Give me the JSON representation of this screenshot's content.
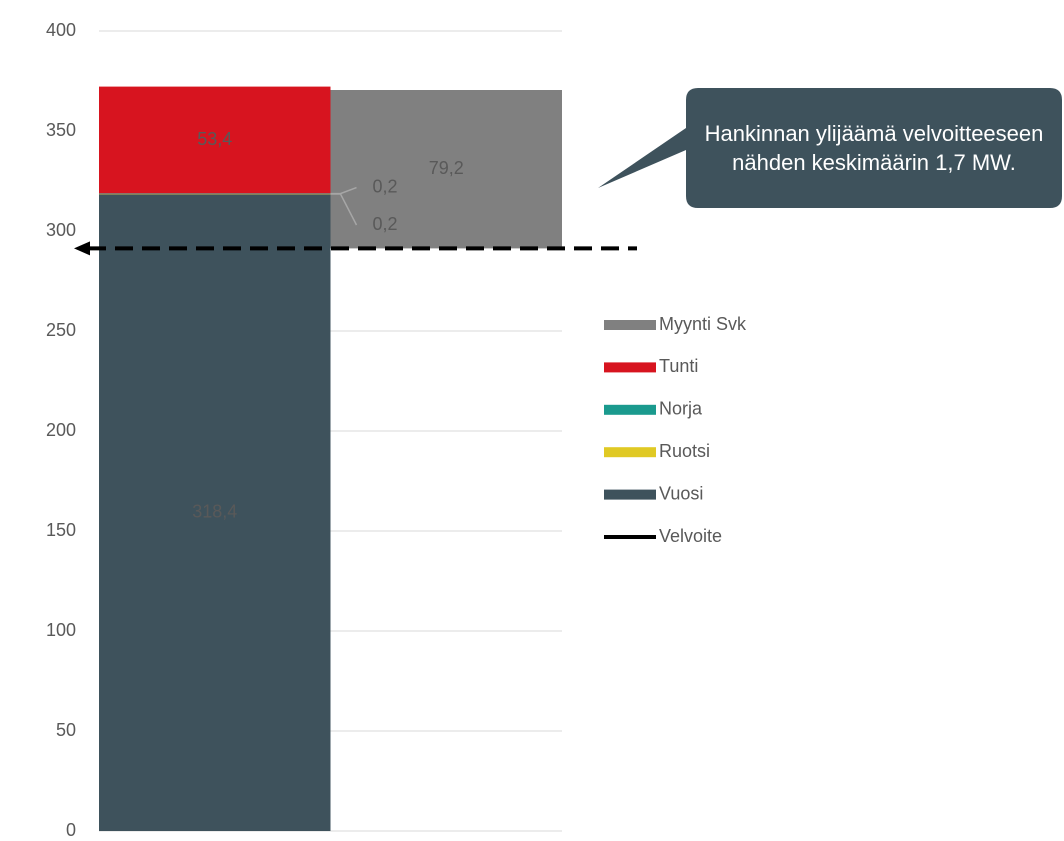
{
  "chart_data": {
    "type": "bar",
    "stacked": true,
    "categories": [
      null,
      null
    ],
    "series": [
      {
        "name": "Myynti Svk",
        "color": "#808080",
        "values": [
          null,
          79.2
        ],
        "value_labels": [
          null,
          "79,2"
        ]
      },
      {
        "name": "Tunti",
        "color": "#d7141f",
        "values": [
          53.4,
          null
        ],
        "value_labels": [
          "53,4",
          null
        ]
      },
      {
        "name": "Norja",
        "color": "#1a9a8e",
        "values": [
          0.2,
          null
        ],
        "value_labels": [
          "0,2",
          null
        ]
      },
      {
        "name": "Ruotsi",
        "color": "#e0c924",
        "values": [
          0.2,
          null
        ],
        "value_labels": [
          "0,2",
          null
        ]
      },
      {
        "name": "Vuosi",
        "color": "#3e525c",
        "values": [
          318.4,
          null
        ],
        "value_labels": [
          "318,4",
          null
        ]
      },
      {
        "name": "Velvoite",
        "type": "line",
        "color": "#000000",
        "dashed": true,
        "values": [
          291.3,
          291.3
        ]
      }
    ],
    "ylim": [
      0,
      400
    ],
    "yticks": [
      0,
      50,
      100,
      150,
      200,
      250,
      300,
      350,
      400
    ],
    "grid": true,
    "legend": "right",
    "annotation": "Hankinnan ylijäämä velvoitteeseen nähden keskimäärin 1,7 MW."
  }
}
